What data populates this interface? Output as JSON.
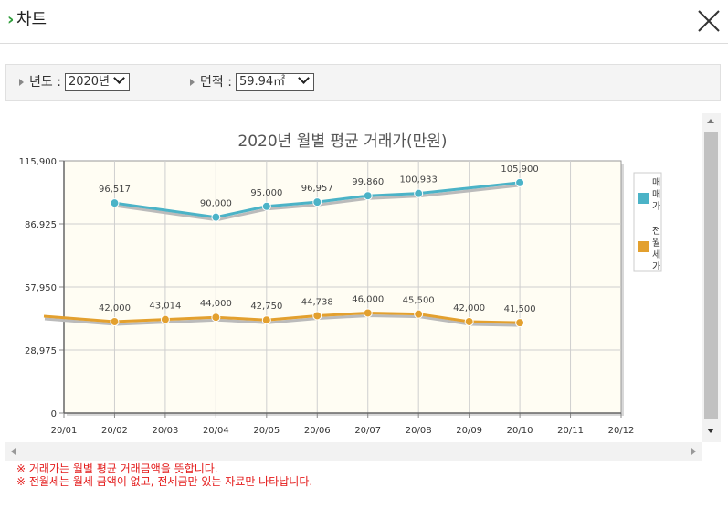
{
  "header": {
    "title": "차트"
  },
  "filters": {
    "year_label": "년도 :",
    "year_value": "2020년",
    "area_label": "면적 :",
    "area_value": "59.94㎡"
  },
  "notes": [
    "※ 거래가는 월별 평균 거래금액을 뜻합니다.",
    "※ 전월세는 월세 금액이 없고, 전세금만 있는 자료만 나타납니다."
  ],
  "colors": {
    "sale": "#4bb3c7",
    "rent": "#e3a02e"
  },
  "chart_data": {
    "type": "line",
    "title": "2020년 월별 평균 거래가(만원)",
    "categories": [
      "20/01",
      "20/02",
      "20/03",
      "20/04",
      "20/05",
      "20/06",
      "20/07",
      "20/08",
      "20/09",
      "20/10",
      "20/11",
      "20/12"
    ],
    "y_ticks": [
      "115,900",
      "86,925",
      "57,950",
      "28,975",
      "0"
    ],
    "ylim": [
      0,
      115900
    ],
    "grid": true,
    "legend_position": "right",
    "series": [
      {
        "name": "매매가",
        "legend_lines": [
          "매",
          "매",
          "가"
        ],
        "color": "#4bb3c7",
        "values": [
          null,
          96517,
          null,
          90000,
          95000,
          96957,
          99860,
          100933,
          null,
          105900,
          null,
          null
        ],
        "labels": [
          null,
          "96,517",
          null,
          "90,000",
          "95,000",
          "96,957",
          "99,860",
          "100,933",
          null,
          "105,900",
          null,
          null
        ]
      },
      {
        "name": "전월세가",
        "legend_lines": [
          "전",
          "월",
          "세",
          "가"
        ],
        "color": "#e3a02e",
        "values": [
          44500,
          42000,
          43014,
          44000,
          42750,
          44738,
          46000,
          45500,
          42000,
          41500,
          null,
          null
        ],
        "labels": [
          null,
          "42,000",
          "43,014",
          "44,000",
          "42,750",
          "44,738",
          "46,000",
          "45,500",
          "42,000",
          "41,500",
          null,
          null
        ]
      }
    ]
  }
}
